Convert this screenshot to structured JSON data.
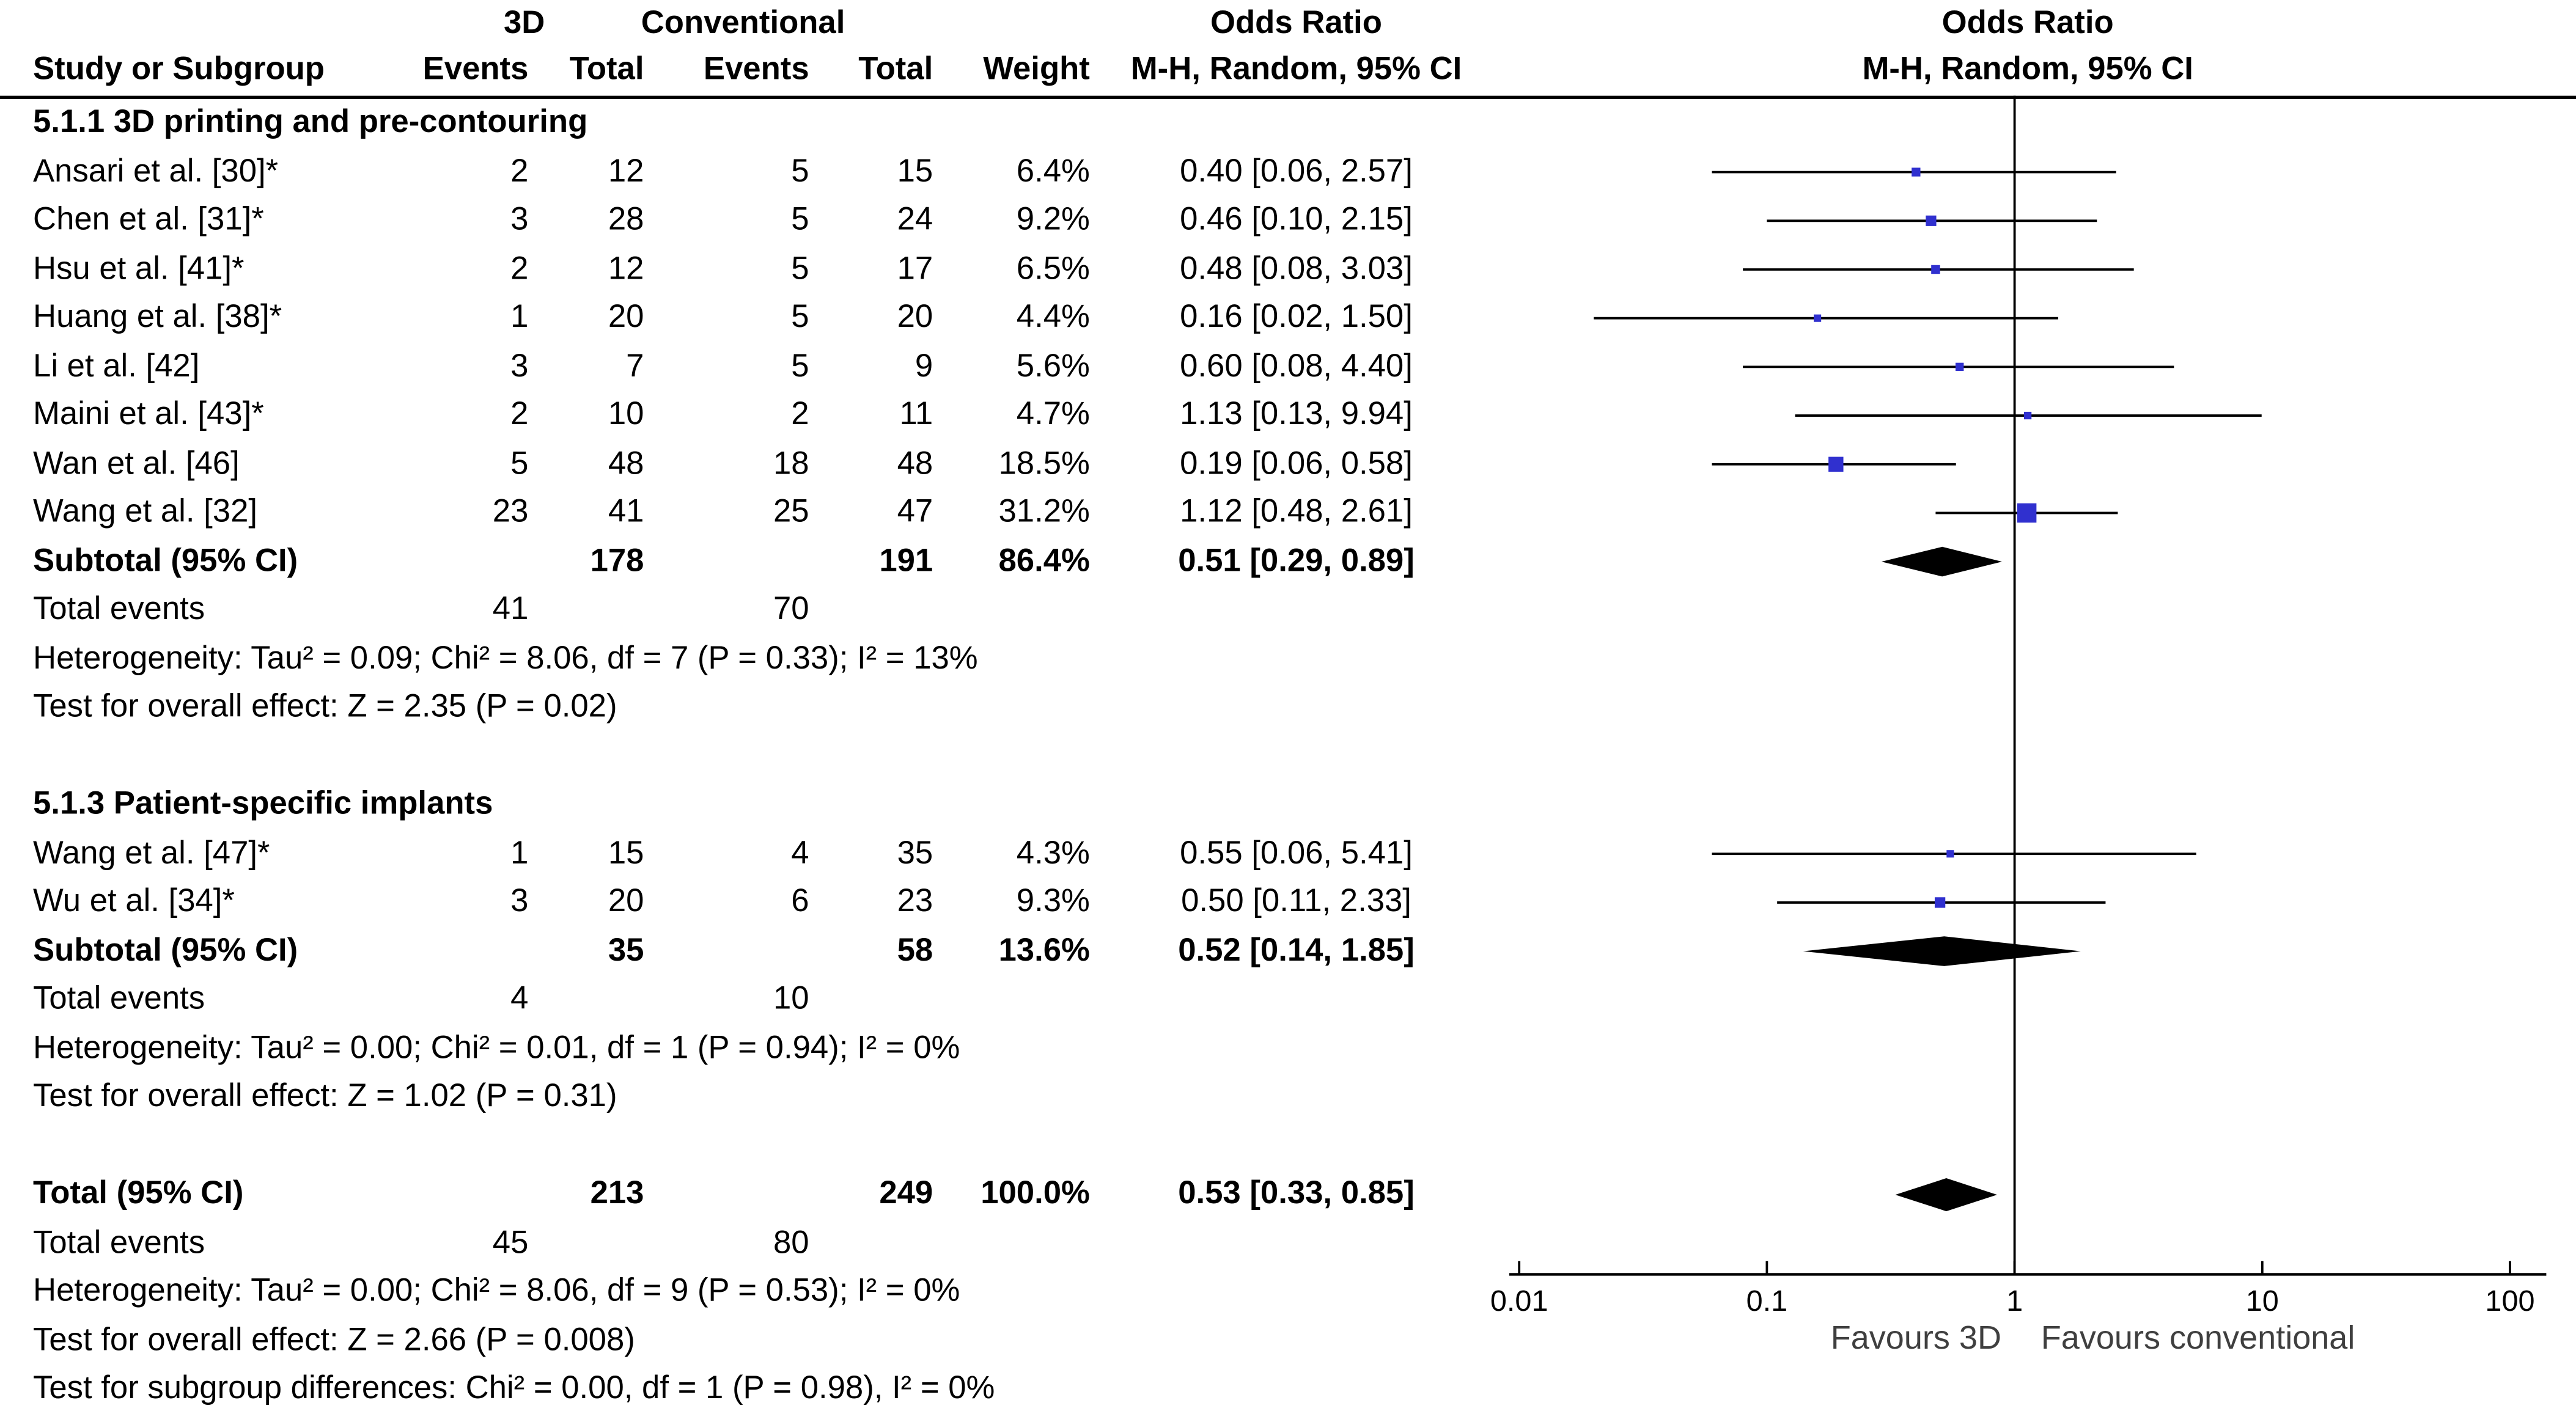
{
  "table": {
    "group_headers": {
      "group1": "3D",
      "group2": "Conventional",
      "or_text": "Odds Ratio",
      "or_plot": "Odds Ratio"
    },
    "column_headers": {
      "study": "Study or Subgroup",
      "events1": "Events",
      "total1": "Total",
      "events2": "Events",
      "total2": "Total",
      "weight": "Weight",
      "ci": "M-H, Random, 95% CI",
      "ci_plot": "M-H, Random, 95% CI"
    }
  },
  "chart_data": {
    "type": "forest",
    "x_scale": "log10",
    "x_range": [
      0.01,
      100
    ],
    "axis": {
      "ticks": [
        0.01,
        0.1,
        1,
        10,
        100
      ],
      "left_label": "Favours 3D",
      "right_label": "Favours conventional"
    },
    "colors": {
      "square": "#3030cf",
      "ci_line": "#000000",
      "diamond": "#000000",
      "text": "#000000"
    },
    "sections": [
      {
        "title": "5.1.1 3D printing and pre-contouring",
        "studies": [
          {
            "name": "Ansari et al. [30]*",
            "e1": "2",
            "t1": "12",
            "e2": "5",
            "t2": "15",
            "weight": "6.4%",
            "weight_val": 6.4,
            "or": 0.4,
            "lo": 0.06,
            "hi": 2.57,
            "label": "0.40 [0.06, 2.57]"
          },
          {
            "name": "Chen et al. [31]*",
            "e1": "3",
            "t1": "28",
            "e2": "5",
            "t2": "24",
            "weight": "9.2%",
            "weight_val": 9.2,
            "or": 0.46,
            "lo": 0.1,
            "hi": 2.15,
            "label": "0.46 [0.10, 2.15]"
          },
          {
            "name": "Hsu et al. [41]*",
            "e1": "2",
            "t1": "12",
            "e2": "5",
            "t2": "17",
            "weight": "6.5%",
            "weight_val": 6.5,
            "or": 0.48,
            "lo": 0.08,
            "hi": 3.03,
            "label": "0.48 [0.08, 3.03]"
          },
          {
            "name": "Huang et al. [38]*",
            "e1": "1",
            "t1": "20",
            "e2": "5",
            "t2": "20",
            "weight": "4.4%",
            "weight_val": 4.4,
            "or": 0.16,
            "lo": 0.02,
            "hi": 1.5,
            "label": "0.16 [0.02, 1.50]"
          },
          {
            "name": "Li et al. [42]",
            "e1": "3",
            "t1": "7",
            "e2": "5",
            "t2": "9",
            "weight": "5.6%",
            "weight_val": 5.6,
            "or": 0.6,
            "lo": 0.08,
            "hi": 4.4,
            "label": "0.60 [0.08, 4.40]"
          },
          {
            "name": "Maini et al. [43]*",
            "e1": "2",
            "t1": "10",
            "e2": "2",
            "t2": "11",
            "weight": "4.7%",
            "weight_val": 4.7,
            "or": 1.13,
            "lo": 0.13,
            "hi": 9.94,
            "label": "1.13 [0.13, 9.94]"
          },
          {
            "name": "Wan et al. [46]",
            "e1": "5",
            "t1": "48",
            "e2": "18",
            "t2": "48",
            "weight": "18.5%",
            "weight_val": 18.5,
            "or": 0.19,
            "lo": 0.06,
            "hi": 0.58,
            "label": "0.19 [0.06, 0.58]"
          },
          {
            "name": "Wang et al. [32]",
            "e1": "23",
            "t1": "41",
            "e2": "25",
            "t2": "47",
            "weight": "31.2%",
            "weight_val": 31.2,
            "or": 1.12,
            "lo": 0.48,
            "hi": 2.61,
            "label": "1.12 [0.48, 2.61]"
          }
        ],
        "subtotal": {
          "name": "Subtotal (95% CI)",
          "t1": "178",
          "t2": "191",
          "weight": "86.4%",
          "or": 0.51,
          "lo": 0.29,
          "hi": 0.89,
          "label": "0.51 [0.29, 0.89]"
        },
        "total_events": {
          "label": "Total events",
          "e1": "41",
          "e2": "70"
        },
        "heterogeneity": "Heterogeneity: Tau² = 0.09; Chi² = 8.06, df = 7 (P = 0.33); I² = 13%",
        "overall_effect": "Test for overall effect: Z = 2.35 (P = 0.02)"
      },
      {
        "title": "5.1.3 Patient-specific implants",
        "studies": [
          {
            "name": "Wang et al. [47]*",
            "e1": "1",
            "t1": "15",
            "e2": "4",
            "t2": "35",
            "weight": "4.3%",
            "weight_val": 4.3,
            "or": 0.55,
            "lo": 0.06,
            "hi": 5.41,
            "label": "0.55 [0.06, 5.41]"
          },
          {
            "name": "Wu et al. [34]*",
            "e1": "3",
            "t1": "20",
            "e2": "6",
            "t2": "23",
            "weight": "9.3%",
            "weight_val": 9.3,
            "or": 0.5,
            "lo": 0.11,
            "hi": 2.33,
            "label": "0.50 [0.11, 2.33]"
          }
        ],
        "subtotal": {
          "name": "Subtotal (95% CI)",
          "t1": "35",
          "t2": "58",
          "weight": "13.6%",
          "or": 0.52,
          "lo": 0.14,
          "hi": 1.85,
          "label": "0.52 [0.14, 1.85]"
        },
        "total_events": {
          "label": "Total events",
          "e1": "4",
          "e2": "10"
        },
        "heterogeneity": "Heterogeneity: Tau² = 0.00; Chi² = 0.01, df = 1 (P = 0.94); I² = 0%",
        "overall_effect": "Test for overall effect: Z = 1.02 (P = 0.31)"
      }
    ],
    "total": {
      "row": {
        "name": "Total (95% CI)",
        "t1": "213",
        "t2": "249",
        "weight": "100.0%",
        "or": 0.53,
        "lo": 0.33,
        "hi": 0.85,
        "label": "0.53 [0.33, 0.85]"
      },
      "total_events": {
        "label": "Total events",
        "e1": "45",
        "e2": "80"
      },
      "heterogeneity": "Heterogeneity: Tau² = 0.00; Chi² = 8.06, df = 9 (P = 0.53); I² = 0%",
      "overall_effect": "Test for overall effect: Z = 2.66 (P = 0.008)",
      "subgroup_diff": "Test for subgroup differences: Chi² = 0.00, df = 1 (P = 0.98), I² = 0%"
    }
  }
}
